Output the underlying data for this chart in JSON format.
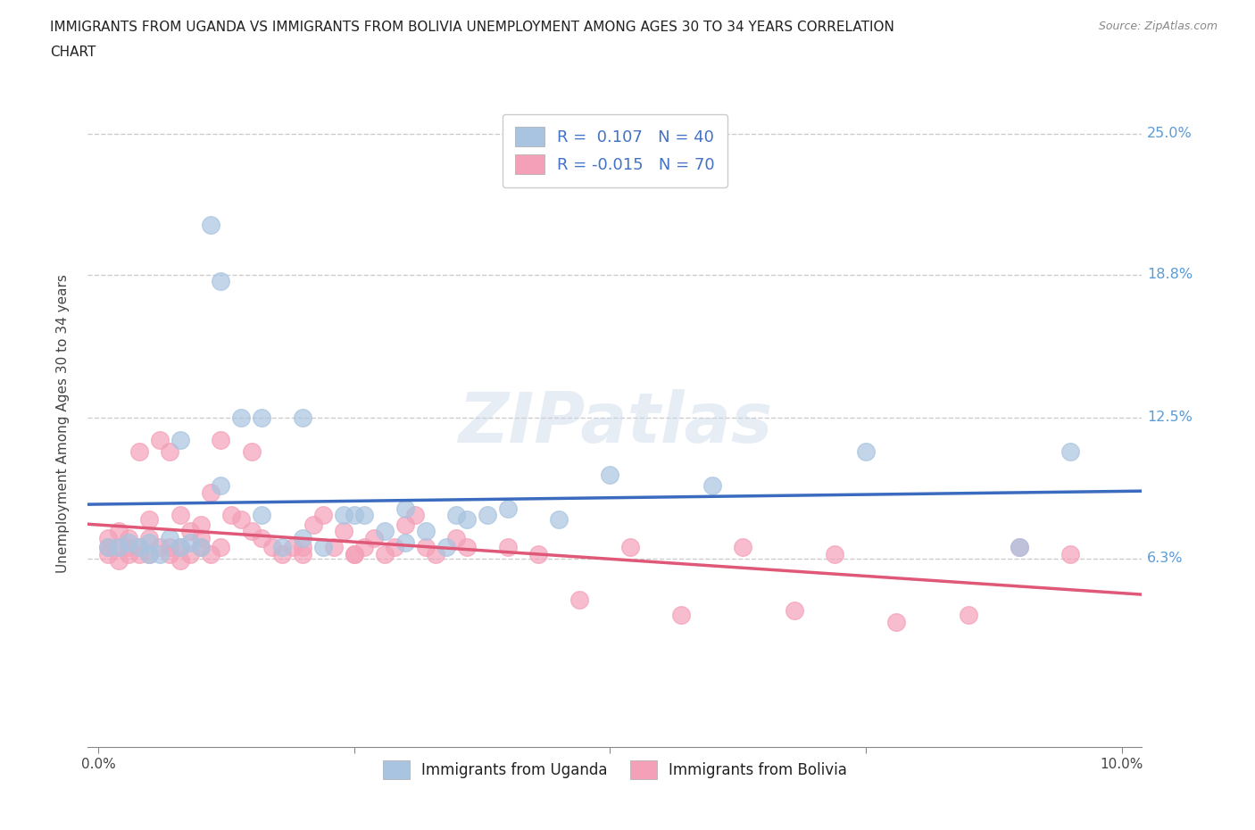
{
  "title": "IMMIGRANTS FROM UGANDA VS IMMIGRANTS FROM BOLIVIA UNEMPLOYMENT AMONG AGES 30 TO 34 YEARS CORRELATION\nCHART",
  "source": "Source: ZipAtlas.com",
  "ylabel": "Unemployment Among Ages 30 to 34 years",
  "xlim": [
    -0.001,
    0.102
  ],
  "ylim": [
    -0.02,
    0.265
  ],
  "yticks": [
    0.0,
    0.063,
    0.125,
    0.188,
    0.25
  ],
  "ytick_labels": [
    "",
    "6.3%",
    "12.5%",
    "18.8%",
    "25.0%"
  ],
  "xticks": [
    0.0,
    0.025,
    0.05,
    0.075,
    0.1
  ],
  "xtick_labels": [
    "0.0%",
    "",
    "",
    "",
    "10.0%"
  ],
  "uganda_color": "#a8c4e0",
  "bolivia_color": "#f4a0b8",
  "uganda_line_color": "#3a6bbf",
  "bolivia_line_color": "#e05878",
  "legend_uganda_label": "R =  0.107   N = 40",
  "legend_bolivia_label": "R = -0.015   N = 70",
  "legend_bottom_uganda": "Immigrants from Uganda",
  "legend_bottom_bolivia": "Immigrants from Bolivia",
  "uganda_x": [
    0.001,
    0.002,
    0.003,
    0.004,
    0.005,
    0.005,
    0.006,
    0.007,
    0.008,
    0.009,
    0.01,
    0.011,
    0.012,
    0.014,
    0.016,
    0.018,
    0.02,
    0.022,
    0.024,
    0.026,
    0.028,
    0.03,
    0.032,
    0.034,
    0.036,
    0.038,
    0.008,
    0.012,
    0.016,
    0.02,
    0.025,
    0.03,
    0.035,
    0.04,
    0.045,
    0.05,
    0.06,
    0.075,
    0.09,
    0.095
  ],
  "uganda_y": [
    0.068,
    0.068,
    0.07,
    0.068,
    0.065,
    0.07,
    0.065,
    0.072,
    0.068,
    0.07,
    0.068,
    0.21,
    0.185,
    0.125,
    0.125,
    0.068,
    0.072,
    0.068,
    0.082,
    0.082,
    0.075,
    0.07,
    0.075,
    0.068,
    0.08,
    0.082,
    0.115,
    0.095,
    0.082,
    0.125,
    0.082,
    0.085,
    0.082,
    0.085,
    0.08,
    0.1,
    0.095,
    0.11,
    0.068,
    0.11
  ],
  "bolivia_x": [
    0.001,
    0.001,
    0.001,
    0.002,
    0.002,
    0.002,
    0.003,
    0.003,
    0.003,
    0.004,
    0.004,
    0.004,
    0.005,
    0.005,
    0.005,
    0.006,
    0.006,
    0.007,
    0.007,
    0.007,
    0.008,
    0.008,
    0.008,
    0.009,
    0.009,
    0.01,
    0.01,
    0.01,
    0.011,
    0.011,
    0.012,
    0.012,
    0.013,
    0.014,
    0.015,
    0.015,
    0.016,
    0.017,
    0.018,
    0.019,
    0.02,
    0.021,
    0.022,
    0.023,
    0.024,
    0.025,
    0.026,
    0.027,
    0.028,
    0.029,
    0.03,
    0.031,
    0.032,
    0.033,
    0.035,
    0.036,
    0.04,
    0.043,
    0.047,
    0.052,
    0.057,
    0.063,
    0.068,
    0.072,
    0.078,
    0.085,
    0.09,
    0.095,
    0.02,
    0.025
  ],
  "bolivia_y": [
    0.065,
    0.068,
    0.072,
    0.062,
    0.068,
    0.075,
    0.065,
    0.072,
    0.068,
    0.065,
    0.068,
    0.11,
    0.065,
    0.072,
    0.08,
    0.068,
    0.115,
    0.065,
    0.068,
    0.11,
    0.062,
    0.082,
    0.068,
    0.065,
    0.075,
    0.068,
    0.072,
    0.078,
    0.065,
    0.092,
    0.068,
    0.115,
    0.082,
    0.08,
    0.075,
    0.11,
    0.072,
    0.068,
    0.065,
    0.068,
    0.065,
    0.078,
    0.082,
    0.068,
    0.075,
    0.065,
    0.068,
    0.072,
    0.065,
    0.068,
    0.078,
    0.082,
    0.068,
    0.065,
    0.072,
    0.068,
    0.068,
    0.065,
    0.045,
    0.068,
    0.038,
    0.068,
    0.04,
    0.065,
    0.035,
    0.038,
    0.068,
    0.065,
    0.068,
    0.065
  ]
}
